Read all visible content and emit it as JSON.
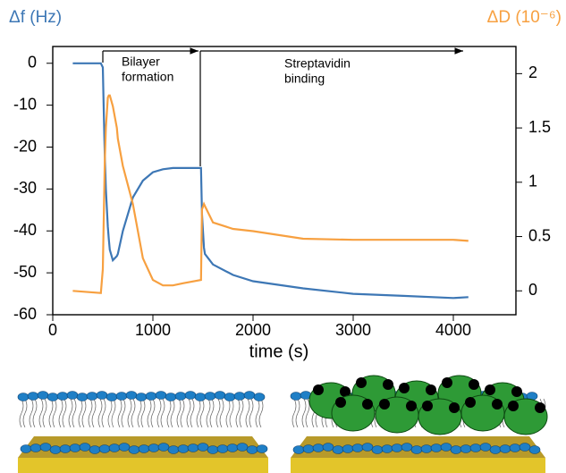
{
  "chart_data": {
    "type": "line",
    "y_label": "Δf (Hz)",
    "y2_label": "ΔD (10⁻⁶)",
    "x_label": "time (s)",
    "annotations": [
      [
        "Bilayer",
        "formation"
      ],
      [
        "Streptavidin",
        "binding"
      ]
    ],
    "x": [
      200,
      480,
      500,
      510,
      520,
      530,
      550,
      560,
      570,
      600,
      640,
      650,
      700,
      800,
      900,
      1000,
      1100,
      1200,
      1300,
      1480,
      1490,
      1510,
      1520,
      1600,
      1800,
      2000,
      2500,
      3000,
      3500,
      4000,
      4150
    ],
    "series": [
      {
        "color": "#3d77b5",
        "axis": "y",
        "values": [
          0,
          0,
          -1,
          -12,
          -22,
          -30,
          -39,
          -42,
          -44.5,
          -47,
          -46,
          -45.5,
          -40,
          -32,
          -28,
          -26,
          -25.3,
          -25,
          -25,
          -25,
          -36,
          -44,
          -45.5,
          -48,
          -50.5,
          -52,
          -53.7,
          -55,
          -55.5,
          -56,
          -55.8
        ]
      },
      {
        "color": "#f7a040",
        "axis": "y2",
        "values": [
          0,
          -0.02,
          0.2,
          0.7,
          1.2,
          1.5,
          1.78,
          1.8,
          1.8,
          1.7,
          1.5,
          1.4,
          1.15,
          0.8,
          0.3,
          0.1,
          0.05,
          0.05,
          0.07,
          0.1,
          0.75,
          0.8,
          0.78,
          0.63,
          0.57,
          0.55,
          0.48,
          0.47,
          0.47,
          0.47,
          0.46
        ]
      }
    ],
    "xlim": [
      0,
      4625
    ],
    "xticks": [
      0,
      1000,
      2000,
      3000,
      4000
    ],
    "ylim": [
      -60,
      4
    ],
    "yticks": [
      0,
      -10,
      -20,
      -30,
      -40,
      -50,
      -60
    ],
    "y2lim": [
      -0.22,
      2.25
    ],
    "y2ticks": [
      0,
      0.5,
      1,
      1.5,
      2
    ]
  }
}
